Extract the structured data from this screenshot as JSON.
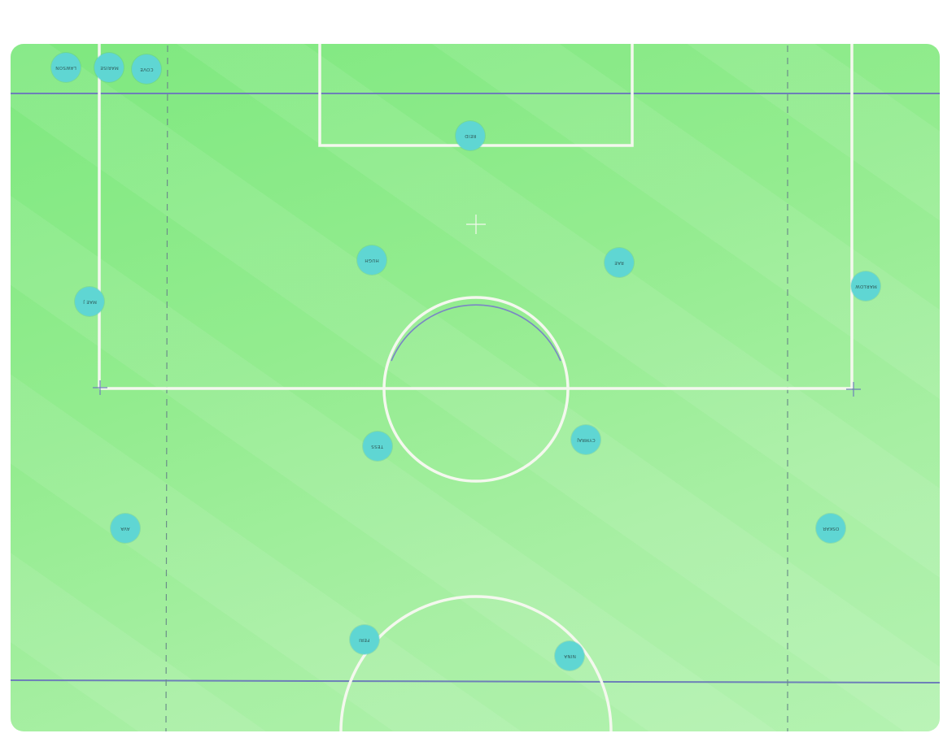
{
  "colors": {
    "grass": "#93ec8f",
    "line_white": "#f4f8ee",
    "line_blue": "#6d7fb8",
    "dashed": "#6b8f88",
    "token": "#5fd6d3"
  },
  "bench": [
    {
      "id": "lawson",
      "label": "Lawson"
    },
    {
      "id": "marise",
      "label": "Marise"
    },
    {
      "id": "cove",
      "label": "Cove"
    }
  ],
  "players": [
    {
      "id": "reid",
      "label": "Reid"
    },
    {
      "id": "hugh",
      "label": "Hugh"
    },
    {
      "id": "rae",
      "label": "Rae"
    },
    {
      "id": "mae-j",
      "label": "Mae J"
    },
    {
      "id": "marlow",
      "label": "Marlow"
    },
    {
      "id": "tess",
      "label": "Tess"
    },
    {
      "id": "cymraj",
      "label": "Cymraj"
    },
    {
      "id": "ava",
      "label": "Ava"
    },
    {
      "id": "oskar",
      "label": "Oskar"
    },
    {
      "id": "feri",
      "label": "Feri"
    },
    {
      "id": "nina",
      "label": "Nina"
    }
  ]
}
